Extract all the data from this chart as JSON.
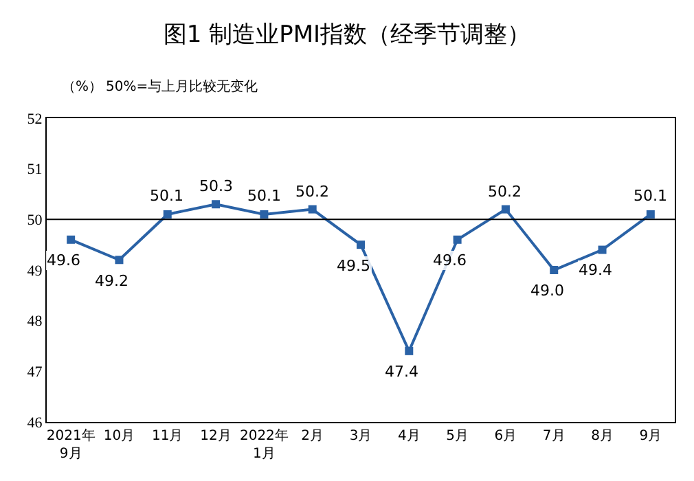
{
  "chart_data": {
    "type": "line",
    "title": "图1 制造业PMI指数（经季节调整）",
    "ylabel": "（%）",
    "annotations": [
      "50%=与上月比较无变化"
    ],
    "categories": [
      "2021年\n9月",
      "10月",
      "11月",
      "12月",
      "2022年\n1月",
      "2月",
      "3月",
      "4月",
      "5月",
      "6月",
      "7月",
      "8月",
      "9月"
    ],
    "series": [
      {
        "color": "#2a62a6",
        "values": [
          49.6,
          49.2,
          50.1,
          50.3,
          50.1,
          50.2,
          49.5,
          47.4,
          49.6,
          50.2,
          49.0,
          49.4,
          50.1
        ],
        "value_labels": [
          "49.6",
          "49.2",
          "50.1",
          "50.3",
          "50.1",
          "50.2",
          "49.5",
          "47.4",
          "49.6",
          "50.2",
          "49.0",
          "49.4",
          "50.1"
        ]
      }
    ],
    "ylim": [
      46,
      52
    ],
    "yticks": [
      46,
      47,
      48,
      49,
      50,
      51,
      52
    ],
    "marker": "square",
    "line_style": "solid",
    "ref_lines": [
      {
        "axis": "y",
        "value": 50,
        "color": "#000000"
      }
    ]
  }
}
